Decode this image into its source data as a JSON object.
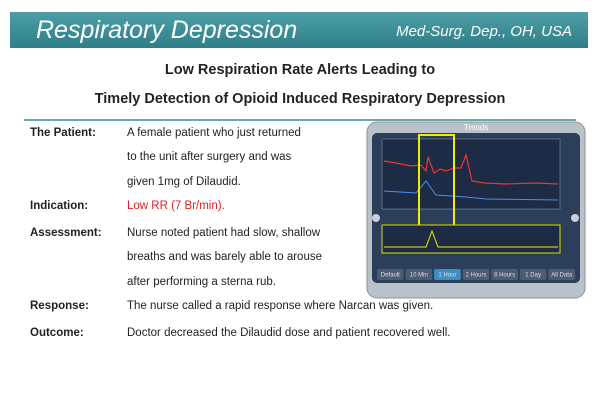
{
  "header": {
    "title": "Respiratory Depression",
    "location": "Med-Surg. Dep., OH, USA"
  },
  "subtitle": [
    "Low Respiration Rate Alerts Leading to",
    "Timely Detection of Opioid Induced Respiratory Depression"
  ],
  "rows": [
    {
      "label": "The Patient:",
      "lines": [
        "A female patient who just returned",
        "to the unit after surgery and was",
        "given 1mg of Dilaudid."
      ]
    },
    {
      "label": "Indication:",
      "lines": [
        "Low RR (7 Br/min)."
      ]
    },
    {
      "label": "Assessment:",
      "lines": [
        "Nurse noted patient had slow, shallow",
        "breaths and was barely able to arouse",
        "after performing a sterna rub."
      ]
    },
    {
      "label": "Response:",
      "lines": [
        "The nurse called a rapid response where Narcan was given."
      ]
    },
    {
      "label": "Outcome:",
      "lines": [
        "Doctor decreased the Dilaudid dose and patient recovered well."
      ]
    }
  ],
  "monitor": {
    "title": "Trends",
    "buttons": [
      "Default",
      "10 Min",
      "1 Hour",
      "2 Hours",
      "8 Hours",
      "1 Day",
      "All Data"
    ]
  }
}
